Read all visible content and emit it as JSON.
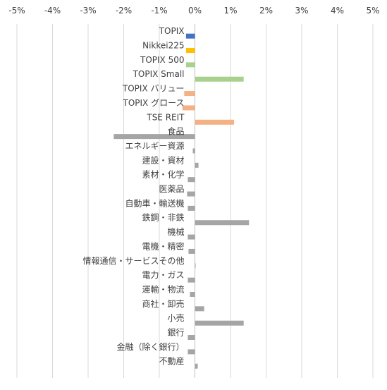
{
  "chart_data": {
    "type": "bar",
    "orientation": "horizontal",
    "x_ticks": [
      "-5%",
      "-4%",
      "-3%",
      "-2%",
      "-1%",
      "0%",
      "1%",
      "2%",
      "3%",
      "4%",
      "5%"
    ],
    "xlim": [
      -5,
      5
    ],
    "x_axis_position": "top",
    "grid": "vertical",
    "legend": "none",
    "unit": "%",
    "categories": [
      "TOPIX",
      "Nikkei225",
      "TOPIX 500",
      "TOPIX Small",
      "TOPIX バリュー",
      "TOPIX グロース",
      "TSE REIT",
      "食品",
      "エネルギー資源",
      "建設・資材",
      "素材・化学",
      "医薬品",
      "自動車・輸送機",
      "鉄鋼・非鉄",
      "機械",
      "電機・精密",
      "情報通信・サービスその他",
      "電力・ガス",
      "運輸・物流",
      "商社・卸売",
      "小売",
      "銀行",
      "金融（除く銀行）",
      "不動産"
    ],
    "values": [
      -0.25,
      -0.25,
      -0.25,
      1.37,
      -0.3,
      -0.35,
      1.1,
      -2.28,
      -0.06,
      0.1,
      -0.2,
      -0.22,
      -0.2,
      1.52,
      -0.2,
      -0.18,
      0.02,
      -0.2,
      -0.14,
      0.26,
      1.37,
      -0.2,
      -0.2,
      0.08
    ],
    "bar_colors": [
      "#4472C4",
      "#FFC000",
      "#A9D18E",
      "#A9D18E",
      "#F4B183",
      "#F4B183",
      "#F4B183",
      "#A5A5A5",
      "#A5A5A5",
      "#A5A5A5",
      "#A5A5A5",
      "#A5A5A5",
      "#A5A5A5",
      "#A5A5A5",
      "#A5A5A5",
      "#A5A5A5",
      "#A5A5A5",
      "#A5A5A5",
      "#A5A5A5",
      "#A5A5A5",
      "#A5A5A5",
      "#A5A5A5",
      "#A5A5A5",
      "#A5A5A5"
    ],
    "title": "",
    "xlabel": "",
    "ylabel": ""
  }
}
